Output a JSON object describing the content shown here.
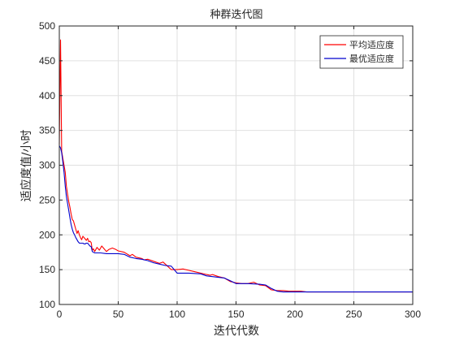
{
  "chart_data": {
    "type": "line",
    "title": "种群迭代图",
    "xlabel": "迭代代数",
    "ylabel": "适应度值/小时",
    "xlim": [
      0,
      300
    ],
    "ylim": [
      100,
      500
    ],
    "xticks": [
      0,
      50,
      100,
      150,
      200,
      250,
      300
    ],
    "yticks": [
      100,
      150,
      200,
      250,
      300,
      350,
      400,
      450,
      500
    ],
    "grid": true,
    "legend_position": "top-right",
    "series": [
      {
        "name": "平均适应度",
        "color": "#ff0000",
        "x": [
          0,
          1,
          2,
          3,
          4,
          5,
          6,
          7,
          8,
          9,
          10,
          11,
          12,
          13,
          14,
          15,
          16,
          17,
          18,
          19,
          20,
          21,
          22,
          23,
          24,
          25,
          26,
          27,
          28,
          29,
          30,
          32,
          34,
          36,
          38,
          40,
          42,
          45,
          48,
          50,
          55,
          60,
          62,
          65,
          70,
          72,
          75,
          80,
          85,
          88,
          90,
          95,
          100,
          105,
          110,
          115,
          120,
          125,
          128,
          130,
          135,
          140,
          145,
          150,
          155,
          160,
          165,
          170,
          175,
          180,
          185,
          190,
          195,
          200,
          205,
          210,
          220,
          230,
          240,
          250,
          260,
          270,
          280,
          290,
          300
        ],
        "y": [
          330,
          480,
          320,
          310,
          300,
          290,
          270,
          258,
          248,
          240,
          230,
          222,
          220,
          214,
          208,
          202,
          206,
          200,
          196,
          193,
          198,
          196,
          194,
          192,
          195,
          190,
          191,
          189,
          178,
          180,
          176,
          182,
          178,
          184,
          180,
          176,
          179,
          181,
          179,
          177,
          175,
          170,
          172,
          168,
          166,
          164,
          165,
          162,
          159,
          161,
          158,
          150,
          150,
          151,
          149,
          147,
          145,
          143,
          142,
          143,
          140,
          138,
          133,
          131,
          130,
          130,
          132,
          128,
          127,
          121,
          120,
          120,
          119,
          119,
          119,
          118,
          118,
          118,
          118,
          118,
          118,
          118,
          118,
          118,
          118
        ]
      },
      {
        "name": "最优适应度",
        "color": "#0000cd",
        "x": [
          0,
          1,
          2,
          3,
          4,
          5,
          6,
          7,
          8,
          9,
          10,
          11,
          12,
          13,
          14,
          15,
          16,
          17,
          18,
          19,
          20,
          21,
          22,
          23,
          24,
          25,
          26,
          27,
          28,
          29,
          30,
          35,
          40,
          45,
          50,
          55,
          60,
          65,
          70,
          75,
          80,
          85,
          90,
          95,
          100,
          110,
          120,
          125,
          130,
          140,
          145,
          150,
          160,
          170,
          175,
          180,
          185,
          190,
          200,
          210,
          220,
          240,
          260,
          280,
          300
        ],
        "y": [
          328,
          325,
          318,
          305,
          290,
          270,
          255,
          245,
          235,
          225,
          215,
          208,
          203,
          200,
          196,
          193,
          190,
          188,
          188,
          188,
          188,
          187,
          187,
          188,
          188,
          186,
          184,
          183,
          176,
          175,
          174,
          174,
          173,
          173,
          173,
          172,
          168,
          166,
          165,
          163,
          160,
          158,
          156,
          155,
          145,
          145,
          144,
          141,
          140,
          138,
          134,
          130,
          130,
          129,
          128,
          123,
          119,
          118,
          118,
          118,
          118,
          118,
          118,
          118,
          118
        ]
      }
    ]
  }
}
